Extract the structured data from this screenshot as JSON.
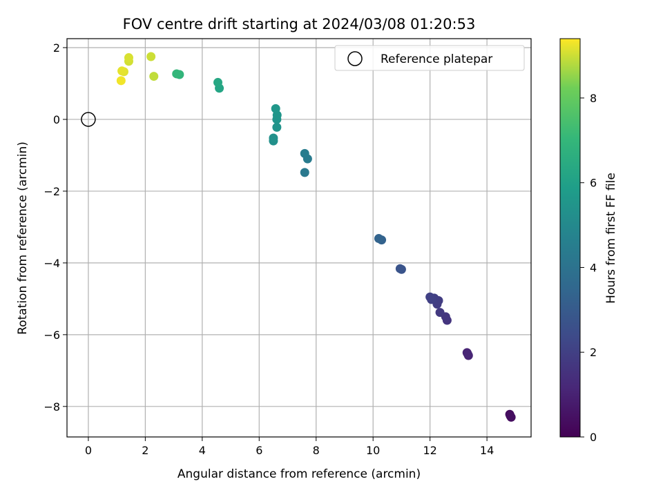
{
  "chart_data": {
    "type": "scatter",
    "title": "FOV centre drift starting at 2024/03/08 01:20:53",
    "xlabel": "Angular distance from reference (arcmin)",
    "ylabel": "Rotation from reference (arcmin)",
    "colorbar_label": "Hours from first FF file",
    "xlim": [
      -0.75,
      15.55
    ],
    "ylim": [
      -8.85,
      2.25
    ],
    "colorbar_range": [
      0,
      9.4
    ],
    "x_ticks": [
      "0",
      "2",
      "4",
      "6",
      "8",
      "10",
      "12",
      "14"
    ],
    "y_ticks": [
      "−8",
      "−6",
      "−4",
      "−2",
      "0",
      "2"
    ],
    "colorbar_ticks": [
      "0",
      "2",
      "4",
      "6",
      "8"
    ],
    "grid": true,
    "colormap": "viridis",
    "legend_position": "top-right",
    "legend": [
      {
        "label": "Reference platepar",
        "marker": "open-circle"
      }
    ],
    "reference_point": {
      "x": 0,
      "y": 0
    },
    "points": [
      {
        "x": 14.8,
        "y": -8.22,
        "c": 0.3
      },
      {
        "x": 14.85,
        "y": -8.3,
        "c": 0.35
      },
      {
        "x": 14.82,
        "y": -8.26,
        "c": 0.4
      },
      {
        "x": 13.3,
        "y": -6.5,
        "c": 1.0
      },
      {
        "x": 13.35,
        "y": -6.58,
        "c": 1.05
      },
      {
        "x": 13.32,
        "y": -6.53,
        "c": 1.1
      },
      {
        "x": 12.6,
        "y": -5.6,
        "c": 1.6
      },
      {
        "x": 12.55,
        "y": -5.5,
        "c": 1.65
      },
      {
        "x": 12.35,
        "y": -5.38,
        "c": 1.75
      },
      {
        "x": 12.25,
        "y": -5.15,
        "c": 1.85
      },
      {
        "x": 12.3,
        "y": -5.05,
        "c": 1.9
      },
      {
        "x": 12.15,
        "y": -4.98,
        "c": 1.95
      },
      {
        "x": 12.05,
        "y": -5.02,
        "c": 2.0
      },
      {
        "x": 12.0,
        "y": -4.95,
        "c": 2.05
      },
      {
        "x": 11.0,
        "y": -4.18,
        "c": 2.7
      },
      {
        "x": 10.95,
        "y": -4.16,
        "c": 2.75
      },
      {
        "x": 10.3,
        "y": -3.36,
        "c": 3.3
      },
      {
        "x": 10.2,
        "y": -3.32,
        "c": 3.35
      },
      {
        "x": 7.6,
        "y": -1.48,
        "c": 4.3
      },
      {
        "x": 7.7,
        "y": -1.1,
        "c": 4.4
      },
      {
        "x": 7.6,
        "y": -0.95,
        "c": 4.45
      },
      {
        "x": 6.5,
        "y": -0.6,
        "c": 5.3
      },
      {
        "x": 6.5,
        "y": -0.52,
        "c": 5.35
      },
      {
        "x": 6.62,
        "y": -0.22,
        "c": 5.45
      },
      {
        "x": 6.62,
        "y": 0.0,
        "c": 5.5
      },
      {
        "x": 6.63,
        "y": 0.12,
        "c": 5.55
      },
      {
        "x": 6.58,
        "y": 0.3,
        "c": 5.6
      },
      {
        "x": 4.6,
        "y": 0.87,
        "c": 6.2
      },
      {
        "x": 4.55,
        "y": 1.03,
        "c": 6.3
      },
      {
        "x": 3.2,
        "y": 1.25,
        "c": 6.9
      },
      {
        "x": 3.1,
        "y": 1.27,
        "c": 7.0
      },
      {
        "x": 2.3,
        "y": 1.2,
        "c": 8.9
      },
      {
        "x": 2.2,
        "y": 1.75,
        "c": 9.0
      },
      {
        "x": 1.42,
        "y": 1.62,
        "c": 9.05
      },
      {
        "x": 1.42,
        "y": 1.72,
        "c": 9.1
      },
      {
        "x": 1.25,
        "y": 1.33,
        "c": 9.15
      },
      {
        "x": 1.18,
        "y": 1.35,
        "c": 9.2
      },
      {
        "x": 1.15,
        "y": 1.08,
        "c": 9.3
      }
    ]
  }
}
